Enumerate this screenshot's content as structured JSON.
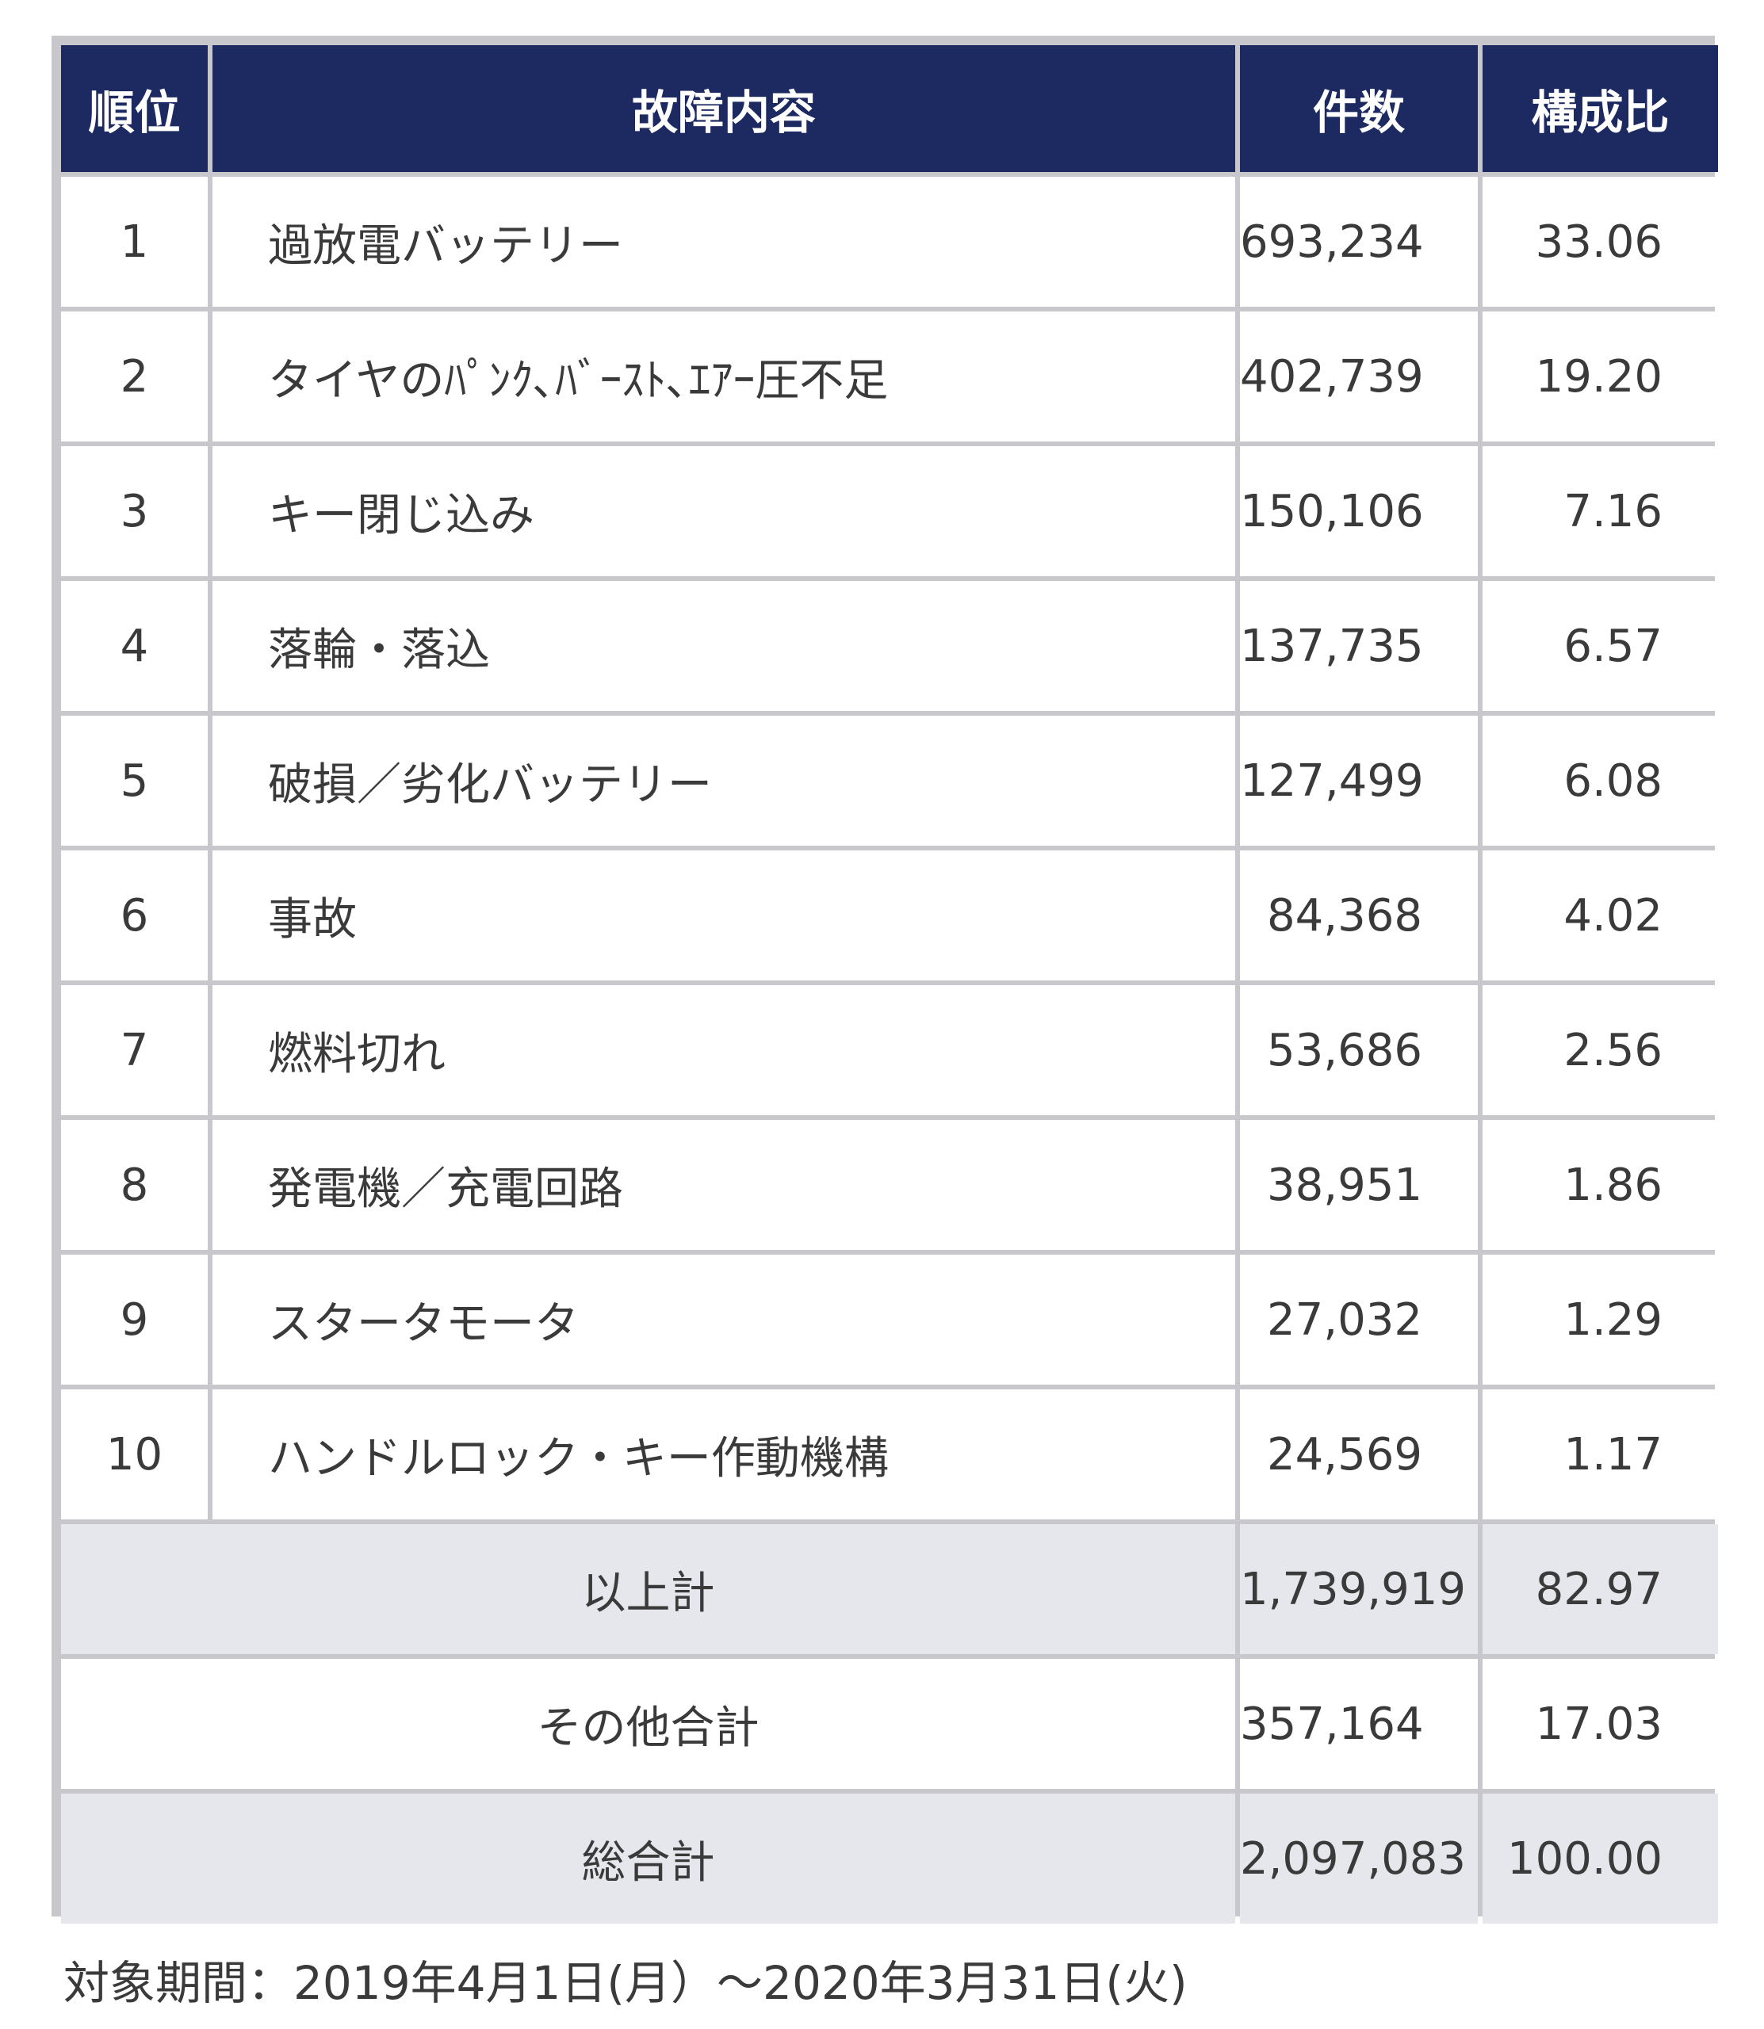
{
  "headers": {
    "rank": "順位",
    "content": "故障内容",
    "count": "件数",
    "ratio": "構成比"
  },
  "rows": [
    {
      "rank": "1",
      "content": "過放電バッテリー",
      "count": "693,234",
      "ratio": "33.06"
    },
    {
      "rank": "2",
      "content": "タイヤのﾊﾟﾝｸ､ﾊﾞｰｽﾄ､ｴｱｰ圧不足",
      "count": "402,739",
      "ratio": "19.20"
    },
    {
      "rank": "3",
      "content": "キー閉じ込み",
      "count": "150,106",
      "ratio": "7.16"
    },
    {
      "rank": "4",
      "content": "落輪・落込",
      "count": "137,735",
      "ratio": "6.57"
    },
    {
      "rank": "5",
      "content": "破損／劣化バッテリー",
      "count": "127,499",
      "ratio": "6.08"
    },
    {
      "rank": "6",
      "content": "事故",
      "count": "84,368",
      "ratio": "4.02"
    },
    {
      "rank": "7",
      "content": "燃料切れ",
      "count": "53,686",
      "ratio": "2.56"
    },
    {
      "rank": "8",
      "content": "発電機／充電回路",
      "count": "38,951",
      "ratio": "1.86"
    },
    {
      "rank": "9",
      "content": "スタータモータ",
      "count": "27,032",
      "ratio": "1.29"
    },
    {
      "rank": "10",
      "content": "ハンドルロック・キー作動機構",
      "count": "24,569",
      "ratio": "1.17"
    }
  ],
  "totals": [
    {
      "label": "以上計",
      "count": "1,739,919",
      "ratio": "82.97",
      "shaded": true
    },
    {
      "label": "その他合計",
      "count": "357,164",
      "ratio": "17.03",
      "shaded": false
    },
    {
      "label": "総合計",
      "count": "2,097,083",
      "ratio": "100.00",
      "shaded": true
    }
  ],
  "caption": "対象期間：2019年4月1日(月）～2020年3月31日(火)",
  "colors": {
    "header_bg": "#1d2a62",
    "header_text": "#ffffff",
    "shaded_row_bg": "#e6e7ec",
    "border": "#c8c8cc"
  }
}
